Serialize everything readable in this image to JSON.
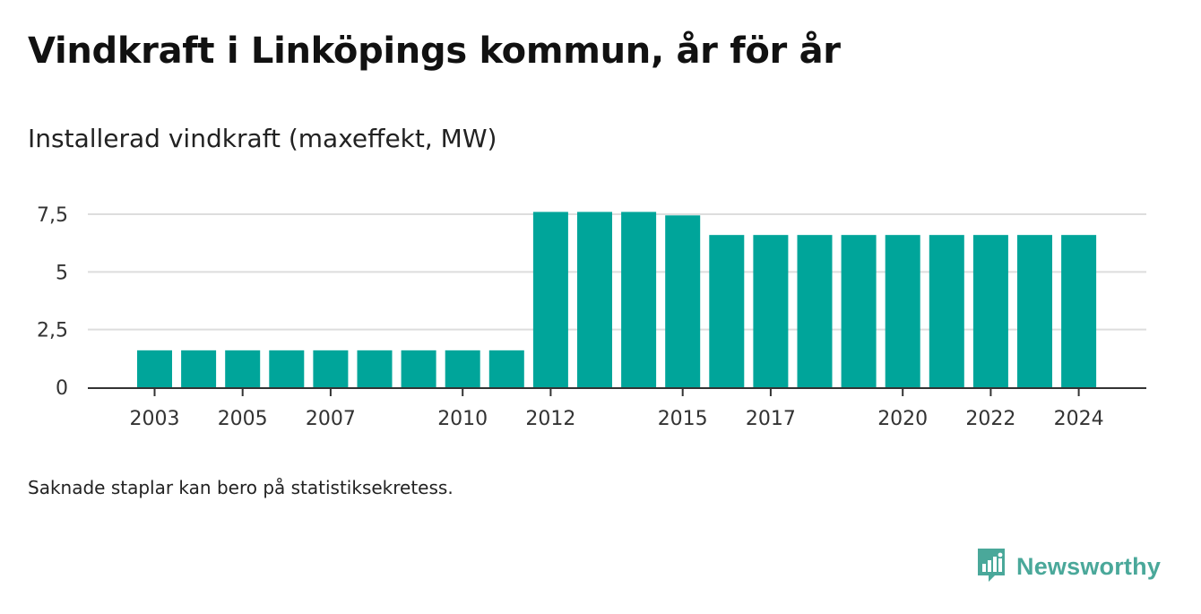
{
  "title": "Vindkraft i Linköpings kommun, år för år",
  "subtitle": "Installerad vindkraft (maxeffekt, MW)",
  "note": "Saknade staplar kan bero på statistiksekretess.",
  "brand": {
    "name": "Newsworthy",
    "icon": "newsworthy-logo-icon",
    "color": "#4aa89a"
  },
  "colors": {
    "bar": "#00a59a",
    "grid": "#dddddd",
    "axis": "#333333"
  },
  "chart_data": {
    "type": "bar",
    "categories": [
      "2003",
      "2004",
      "2005",
      "2006",
      "2007",
      "2008",
      "2009",
      "2010",
      "2011",
      "2012",
      "2013",
      "2014",
      "2015",
      "2016",
      "2017",
      "2018",
      "2019",
      "2020",
      "2021",
      "2022",
      "2023",
      "2024"
    ],
    "values": [
      1.6,
      1.6,
      1.6,
      1.6,
      1.6,
      1.6,
      1.6,
      1.6,
      1.6,
      7.6,
      7.6,
      7.6,
      7.45,
      6.6,
      6.6,
      6.6,
      6.6,
      6.6,
      6.6,
      6.6,
      6.6,
      6.6
    ],
    "x_tick_labels": [
      "2003",
      "2005",
      "2007",
      "2010",
      "2012",
      "2015",
      "2017",
      "2020",
      "2022",
      "2024"
    ],
    "y_ticks": [
      0,
      2.5,
      5,
      7.5
    ],
    "y_tick_labels": [
      "0",
      "2,5",
      "5",
      "7,5"
    ],
    "ylim": [
      0,
      7.5
    ],
    "xlabel": "",
    "ylabel": "",
    "grid": true,
    "legend": "none"
  }
}
